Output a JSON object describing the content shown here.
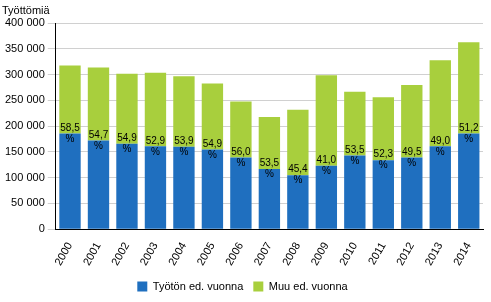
{
  "chart_data": {
    "type": "bar",
    "ylabel": "Työttömiä",
    "stacked": true,
    "grid": true,
    "legend": "bottom",
    "categories": [
      "2000",
      "2001",
      "2002",
      "2003",
      "2004",
      "2005",
      "2006",
      "2007",
      "2008",
      "2009",
      "2010",
      "2011",
      "2012",
      "2013",
      "2014"
    ],
    "series": [
      {
        "name": "Työtön ed. vuonna",
        "color": "#1f6fbf",
        "values": [
          186000,
          172000,
          166000,
          161000,
          160000,
          155000,
          139000,
          117000,
          105000,
          123000,
          143000,
          134000,
          139000,
          161000,
          186000
        ]
      },
      {
        "name": "Muu ed. vuonna",
        "color": "#a8cf3d",
        "values": [
          132000,
          142000,
          136000,
          143000,
          137000,
          128000,
          109000,
          101000,
          127000,
          176000,
          124000,
          122000,
          141000,
          167000,
          177000
        ]
      }
    ],
    "annotations": [
      {
        "category": "2000",
        "text": "58,5 %"
      },
      {
        "category": "2001",
        "text": "54,7 %"
      },
      {
        "category": "2002",
        "text": "54,9 %"
      },
      {
        "category": "2003",
        "text": "52,9 %"
      },
      {
        "category": "2004",
        "text": "53,9 %"
      },
      {
        "category": "2005",
        "text": "54,9 %"
      },
      {
        "category": "2006",
        "text": "56,0 %"
      },
      {
        "category": "2007",
        "text": "53,5 %"
      },
      {
        "category": "2008",
        "text": "45,4 %"
      },
      {
        "category": "2009",
        "text": "41,0 %"
      },
      {
        "category": "2010",
        "text": "53,5 %"
      },
      {
        "category": "2011",
        "text": "52,3 %"
      },
      {
        "category": "2012",
        "text": "49,5 %"
      },
      {
        "category": "2013",
        "text": "49,0 %"
      },
      {
        "category": "2014",
        "text": "51,2 %"
      }
    ],
    "ylim": [
      0,
      400000
    ],
    "yticks": [
      0,
      {
        "value": 50000,
        "label": "50 000"
      },
      {
        "value": 100000,
        "label": "100 000"
      },
      {
        "value": 150000,
        "label": "150 000"
      },
      {
        "value": 200000,
        "label": "200 000"
      },
      {
        "value": 250000,
        "label": "250 000"
      },
      {
        "value": 300000,
        "label": "300 000"
      },
      {
        "value": 350000,
        "label": "350 000"
      },
      {
        "value": 400000,
        "label": "400 000"
      }
    ]
  }
}
